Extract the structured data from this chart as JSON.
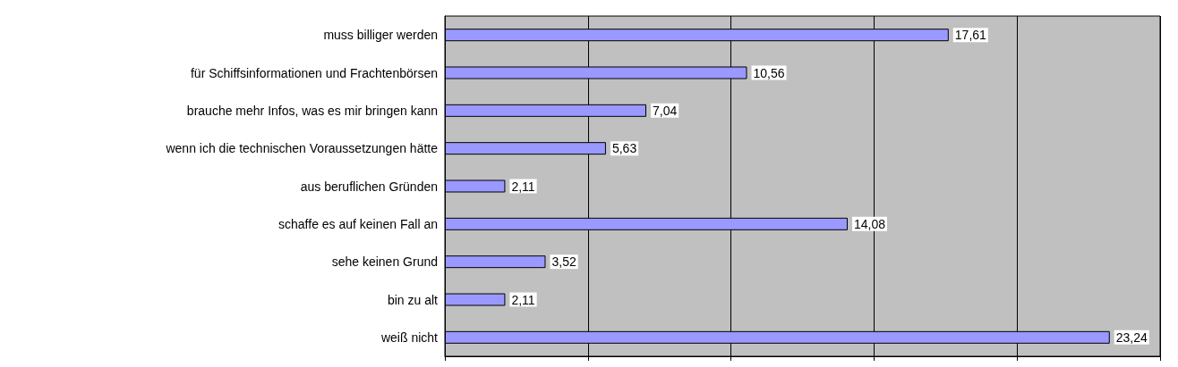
{
  "chart_data": {
    "type": "bar",
    "orientation": "horizontal",
    "categories": [
      "muss billiger werden",
      "für Schiffsinformationen und Frachtenbörsen",
      "brauche mehr Infos, was es mir bringen kann",
      "wenn ich die technischen Voraussetzungen hätte",
      "aus beruflichen Gründen",
      "schaffe es auf keinen Fall an",
      "sehe keinen Grund",
      "bin zu alt",
      "weiß nicht"
    ],
    "values": [
      17.61,
      10.56,
      7.04,
      5.63,
      2.11,
      14.08,
      3.52,
      2.11,
      23.24
    ],
    "value_labels": [
      "17,61",
      "10,56",
      "7,04",
      "5,63",
      "2,11",
      "14,08",
      "3,52",
      "2,11",
      "23,24"
    ],
    "color": "#9999ff",
    "grid": "x",
    "tick_labels": "y"
  }
}
